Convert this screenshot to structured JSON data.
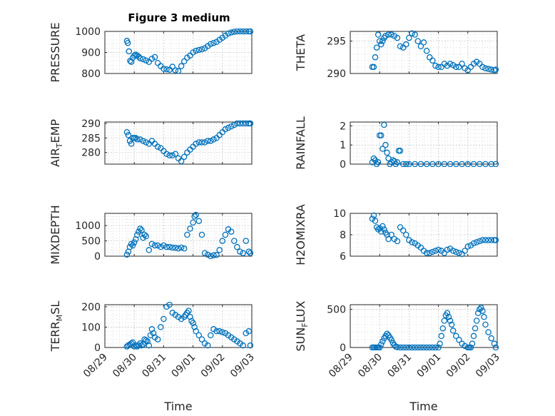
{
  "figure": {
    "title": "Figure 3 medium",
    "colors": {
      "marker": "#0072BD",
      "grid": "#c8c8c8",
      "axis": "#262626",
      "background": "#ffffff"
    },
    "xlabel": "Time",
    "xticks": [
      "08/29",
      "08/30",
      "08/31",
      "09/01",
      "09/02",
      "09/03"
    ]
  },
  "chart_data": [
    {
      "type": "scatter",
      "id": "pressure",
      "ylabel": "PRESSURE",
      "ylim": [
        800,
        1000
      ],
      "yticks": [
        800,
        900,
        1000
      ],
      "grid": true,
      "x_unit": "days since 08/29",
      "xlim": [
        0,
        5
      ],
      "x": [
        0.75,
        0.78,
        0.82,
        0.86,
        0.9,
        0.95,
        1.0,
        1.05,
        1.1,
        1.15,
        1.2,
        1.3,
        1.4,
        1.5,
        1.6,
        1.7,
        1.8,
        1.9,
        2.0,
        2.1,
        2.2,
        2.3,
        2.4,
        2.5,
        2.6,
        2.7,
        2.8,
        2.9,
        3.0,
        3.1,
        3.2,
        3.3,
        3.4,
        3.5,
        3.6,
        3.7,
        3.8,
        3.9,
        4.0,
        4.1,
        4.2,
        4.3,
        4.4,
        4.5,
        4.6,
        4.7,
        4.8,
        4.9,
        4.95
      ],
      "y": [
        955,
        945,
        905,
        860,
        855,
        875,
        885,
        890,
        885,
        880,
        872,
        868,
        862,
        855,
        870,
        878,
        850,
        835,
        822,
        820,
        818,
        832,
        815,
        812,
        835,
        858,
        875,
        885,
        900,
        908,
        912,
        915,
        920,
        930,
        940,
        945,
        950,
        960,
        970,
        980,
        990,
        995,
        998,
        1000,
        1000,
        1000,
        1000,
        1000,
        1000
      ]
    },
    {
      "type": "scatter",
      "id": "theta",
      "ylabel": "THETA",
      "ylim": [
        290,
        296.5
      ],
      "yticks": [
        290,
        295
      ],
      "grid": true,
      "x_unit": "days since 08/29",
      "xlim": [
        0,
        5
      ],
      "x": [
        0.75,
        0.8,
        0.85,
        0.9,
        0.95,
        1.0,
        1.05,
        1.1,
        1.15,
        1.2,
        1.3,
        1.4,
        1.5,
        1.6,
        1.7,
        1.8,
        1.9,
        2.0,
        2.1,
        2.2,
        2.3,
        2.4,
        2.5,
        2.6,
        2.7,
        2.8,
        2.9,
        3.0,
        3.1,
        3.2,
        3.3,
        3.4,
        3.5,
        3.6,
        3.7,
        3.8,
        3.9,
        4.0,
        4.1,
        4.2,
        4.3,
        4.4,
        4.5,
        4.6,
        4.7,
        4.8,
        4.9,
        4.95
      ],
      "y": [
        291,
        291,
        292.5,
        294,
        296,
        295,
        294.5,
        295,
        295.5,
        295.8,
        296,
        296,
        295.8,
        295.5,
        294.2,
        294,
        294.5,
        295.5,
        296.2,
        296,
        295,
        294.2,
        294.8,
        293.5,
        292.5,
        292,
        291.2,
        291,
        291,
        291.5,
        291.2,
        291.5,
        291.3,
        291,
        291,
        291.5,
        290.8,
        290.5,
        291,
        291.5,
        291.8,
        291.5,
        291,
        290.8,
        290.7,
        290.6,
        290.5,
        290.6
      ]
    },
    {
      "type": "scatter",
      "id": "air_temp",
      "ylabel": "AIR_TEMP",
      "ylim": [
        276,
        290.5
      ],
      "yticks": [
        280,
        285,
        290
      ],
      "grid": true,
      "x_unit": "days since 08/29",
      "xlim": [
        0,
        5
      ],
      "x": [
        0.75,
        0.8,
        0.85,
        0.9,
        0.95,
        1.0,
        1.05,
        1.1,
        1.2,
        1.3,
        1.4,
        1.5,
        1.6,
        1.7,
        1.8,
        1.9,
        2.0,
        2.1,
        2.2,
        2.3,
        2.4,
        2.5,
        2.6,
        2.7,
        2.8,
        2.9,
        3.0,
        3.1,
        3.2,
        3.3,
        3.4,
        3.5,
        3.6,
        3.7,
        3.8,
        3.9,
        4.0,
        4.1,
        4.2,
        4.3,
        4.4,
        4.5,
        4.6,
        4.7,
        4.8,
        4.9,
        4.95
      ],
      "y": [
        287,
        286,
        284,
        283,
        285,
        285,
        285,
        284.5,
        284.5,
        284,
        283.5,
        283,
        284,
        283,
        282,
        281.5,
        280.5,
        279.5,
        279,
        279,
        279.5,
        278,
        277,
        278.5,
        280,
        281,
        282,
        283,
        283.5,
        283.5,
        283.5,
        284,
        284,
        284.5,
        285,
        286,
        287,
        288,
        288.5,
        289,
        289.5,
        290,
        290,
        290,
        290,
        290,
        290
      ]
    },
    {
      "type": "scatter",
      "id": "rainfall",
      "ylabel": "RAINFALL",
      "ylim": [
        0,
        2.2
      ],
      "yticks": [
        0,
        1,
        2
      ],
      "grid": true,
      "x_unit": "days since 08/29",
      "xlim": [
        0,
        5
      ],
      "x": [
        0.75,
        0.8,
        0.85,
        0.9,
        0.95,
        1.0,
        1.05,
        1.1,
        1.15,
        1.2,
        1.25,
        1.3,
        1.35,
        1.4,
        1.45,
        1.5,
        1.55,
        1.6,
        1.65,
        1.7,
        1.8,
        1.9,
        2.0,
        2.2,
        2.4,
        2.6,
        2.8,
        3.0,
        3.2,
        3.4,
        3.6,
        3.8,
        4.0,
        4.2,
        4.4,
        4.6,
        4.8,
        4.95
      ],
      "y": [
        0.1,
        0.3,
        0.2,
        0,
        0.1,
        1.5,
        1.5,
        0.8,
        2.05,
        1.0,
        0.6,
        0.3,
        0,
        0.1,
        0.2,
        0.15,
        0,
        0.1,
        0.7,
        0.7,
        0,
        0,
        0,
        0,
        0,
        0,
        0,
        0,
        0,
        0,
        0,
        0,
        0,
        0,
        0,
        0,
        0,
        0
      ]
    },
    {
      "type": "scatter",
      "id": "mixdepth",
      "ylabel": "MIXDEPTH",
      "ylim": [
        0,
        1400
      ],
      "yticks": [
        0,
        500,
        1000
      ],
      "grid": true,
      "x_unit": "days since 08/29",
      "xlim": [
        0,
        5
      ],
      "x": [
        0.75,
        0.8,
        0.85,
        0.9,
        0.95,
        1.0,
        1.05,
        1.1,
        1.15,
        1.2,
        1.25,
        1.3,
        1.35,
        1.4,
        1.5,
        1.6,
        1.7,
        1.8,
        1.9,
        2.0,
        2.1,
        2.2,
        2.3,
        2.4,
        2.5,
        2.6,
        2.7,
        2.8,
        2.9,
        3.0,
        3.05,
        3.1,
        3.2,
        3.3,
        3.4,
        3.5,
        3.6,
        3.7,
        3.8,
        3.9,
        4.0,
        4.1,
        4.2,
        4.3,
        4.4,
        4.5,
        4.6,
        4.7,
        4.8,
        4.9,
        4.95
      ],
      "y": [
        50,
        150,
        300,
        400,
        350,
        450,
        550,
        700,
        800,
        900,
        850,
        600,
        700,
        650,
        200,
        400,
        350,
        350,
        300,
        350,
        300,
        300,
        280,
        270,
        250,
        280,
        250,
        700,
        900,
        1100,
        1300,
        1350,
        1150,
        700,
        100,
        50,
        0,
        30,
        40,
        200,
        500,
        700,
        880,
        800,
        500,
        300,
        150,
        100,
        500,
        150,
        100
      ]
    },
    {
      "type": "scatter",
      "id": "h2omixra",
      "ylabel": "H2OMIXRA",
      "ylim": [
        6,
        10
      ],
      "yticks": [
        6,
        8,
        10
      ],
      "grid": true,
      "x_unit": "days since 08/29",
      "xlim": [
        0,
        5
      ],
      "x": [
        0.75,
        0.8,
        0.85,
        0.9,
        0.95,
        1.0,
        1.05,
        1.1,
        1.15,
        1.2,
        1.25,
        1.3,
        1.4,
        1.5,
        1.6,
        1.7,
        1.8,
        1.9,
        2.0,
        2.1,
        2.2,
        2.3,
        2.4,
        2.5,
        2.6,
        2.7,
        2.8,
        2.9,
        3.0,
        3.1,
        3.2,
        3.3,
        3.4,
        3.5,
        3.6,
        3.7,
        3.8,
        3.9,
        4.0,
        4.1,
        4.2,
        4.3,
        4.4,
        4.5,
        4.6,
        4.7,
        4.8,
        4.9,
        4.95
      ],
      "y": [
        9.5,
        9.8,
        9.3,
        8.7,
        8.5,
        8.6,
        8.3,
        8.8,
        8.5,
        8.2,
        8.0,
        7.6,
        8.0,
        7.6,
        7.4,
        8.7,
        8.4,
        8.0,
        7.5,
        7.3,
        7.2,
        7.0,
        6.8,
        6.5,
        6.3,
        6.3,
        6.4,
        6.5,
        6.6,
        6.5,
        6.3,
        6.6,
        6.7,
        6.5,
        6.4,
        6.3,
        6.2,
        6.5,
        6.9,
        7.0,
        7.2,
        7.3,
        7.4,
        7.5,
        7.5,
        7.5,
        7.5,
        7.5,
        7.5
      ]
    },
    {
      "type": "scatter",
      "id": "terr_msl",
      "ylabel": "TERR_MSL",
      "ylim": [
        0,
        210
      ],
      "yticks": [
        0,
        100,
        200
      ],
      "grid": true,
      "x_unit": "days since 08/29",
      "xlim": [
        0,
        5
      ],
      "x": [
        0.75,
        0.8,
        0.85,
        0.9,
        0.95,
        1.0,
        1.05,
        1.1,
        1.15,
        1.2,
        1.25,
        1.3,
        1.35,
        1.4,
        1.45,
        1.5,
        1.55,
        1.6,
        1.65,
        1.7,
        1.8,
        1.9,
        2.0,
        2.1,
        2.2,
        2.3,
        2.4,
        2.5,
        2.6,
        2.7,
        2.75,
        2.8,
        2.85,
        2.9,
        2.95,
        3.0,
        3.05,
        3.1,
        3.2,
        3.3,
        3.4,
        3.5,
        3.6,
        3.7,
        3.8,
        3.9,
        4.0,
        4.1,
        4.2,
        4.3,
        4.4,
        4.5,
        4.6,
        4.7,
        4.8,
        4.9,
        4.95
      ],
      "y": [
        5,
        10,
        15,
        20,
        25,
        5,
        10,
        5,
        10,
        20,
        10,
        15,
        40,
        35,
        30,
        10,
        60,
        90,
        70,
        50,
        40,
        100,
        140,
        200,
        210,
        170,
        160,
        150,
        140,
        150,
        160,
        170,
        180,
        150,
        130,
        120,
        100,
        80,
        60,
        40,
        20,
        10,
        60,
        90,
        80,
        80,
        75,
        70,
        60,
        50,
        40,
        30,
        20,
        10,
        70,
        80,
        10
      ]
    },
    {
      "type": "scatter",
      "id": "sun_flux",
      "ylabel": "SUN_FLUX",
      "ylim": [
        0,
        560
      ],
      "yticks": [
        0,
        500
      ],
      "grid": true,
      "x_unit": "days since 08/29",
      "xlim": [
        0,
        5
      ],
      "x": [
        0.75,
        0.8,
        0.85,
        0.9,
        0.95,
        1.0,
        1.05,
        1.1,
        1.15,
        1.2,
        1.25,
        1.3,
        1.35,
        1.4,
        1.45,
        1.5,
        1.55,
        1.6,
        1.7,
        1.8,
        1.9,
        2.0,
        2.1,
        2.2,
        2.3,
        2.4,
        2.5,
        2.6,
        2.7,
        2.8,
        2.9,
        3.0,
        3.05,
        3.1,
        3.15,
        3.2,
        3.25,
        3.3,
        3.35,
        3.4,
        3.45,
        3.5,
        3.6,
        3.7,
        3.8,
        3.9,
        4.0,
        4.05,
        4.1,
        4.15,
        4.2,
        4.25,
        4.3,
        4.35,
        4.4,
        4.45,
        4.5,
        4.55,
        4.6,
        4.7,
        4.8,
        4.9,
        4.95
      ],
      "y": [
        0,
        0,
        0,
        0,
        0,
        0,
        40,
        80,
        120,
        150,
        180,
        160,
        130,
        100,
        60,
        30,
        10,
        5,
        0,
        0,
        0,
        0,
        0,
        0,
        0,
        0,
        0,
        0,
        0,
        0,
        0,
        0,
        50,
        150,
        250,
        350,
        420,
        450,
        400,
        350,
        300,
        220,
        150,
        100,
        50,
        20,
        0,
        0,
        0,
        50,
        150,
        250,
        350,
        450,
        500,
        520,
        480,
        400,
        300,
        200,
        120,
        50,
        0
      ]
    }
  ]
}
